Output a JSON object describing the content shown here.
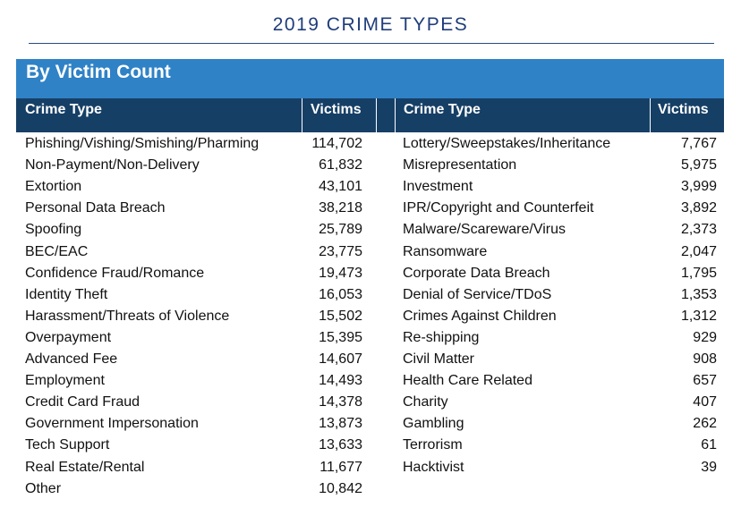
{
  "title": "2019 CRIME TYPES",
  "section_title": "By Victim Count",
  "header": {
    "left_crime_type": "Crime Type",
    "left_victims": "Victims",
    "right_crime_type": "Crime Type",
    "right_victims": "Victims"
  },
  "colors": {
    "title": "#1f3d7a",
    "band": "#2f82c6",
    "header": "#163f66"
  },
  "left_rows": [
    {
      "crime": "Phishing/Vishing/Smishing/Pharming",
      "victims": "114,702"
    },
    {
      "crime": "Non-Payment/Non-Delivery",
      "victims": "61,832"
    },
    {
      "crime": "Extortion",
      "victims": "43,101"
    },
    {
      "crime": "Personal Data Breach",
      "victims": "38,218"
    },
    {
      "crime": "Spoofing",
      "victims": "25,789"
    },
    {
      "crime": "BEC/EAC",
      "victims": "23,775"
    },
    {
      "crime": "Confidence Fraud/Romance",
      "victims": "19,473"
    },
    {
      "crime": "Identity Theft",
      "victims": "16,053"
    },
    {
      "crime": "Harassment/Threats of Violence",
      "victims": "15,502"
    },
    {
      "crime": "Overpayment",
      "victims": "15,395"
    },
    {
      "crime": "Advanced Fee",
      "victims": "14,607"
    },
    {
      "crime": "Employment",
      "victims": "14,493"
    },
    {
      "crime": "Credit Card Fraud",
      "victims": "14,378"
    },
    {
      "crime": "Government Impersonation",
      "victims": "13,873"
    },
    {
      "crime": "Tech Support",
      "victims": "13,633"
    },
    {
      "crime": "Real Estate/Rental",
      "victims": "11,677"
    },
    {
      "crime": "Other",
      "victims": "10,842"
    }
  ],
  "right_rows": [
    {
      "crime": "Lottery/Sweepstakes/Inheritance",
      "victims": "7,767"
    },
    {
      "crime": "Misrepresentation",
      "victims": "5,975"
    },
    {
      "crime": "Investment",
      "victims": "3,999"
    },
    {
      "crime": "IPR/Copyright and Counterfeit",
      "victims": "3,892"
    },
    {
      "crime": "Malware/Scareware/Virus",
      "victims": "2,373"
    },
    {
      "crime": "Ransomware",
      "victims": "2,047"
    },
    {
      "crime": "Corporate Data Breach",
      "victims": "1,795"
    },
    {
      "crime": "Denial of Service/TDoS",
      "victims": "1,353"
    },
    {
      "crime": "Crimes Against Children",
      "victims": "1,312"
    },
    {
      "crime": "Re-shipping",
      "victims": "929"
    },
    {
      "crime": "Civil Matter",
      "victims": "908"
    },
    {
      "crime": "Health Care Related",
      "victims": "657"
    },
    {
      "crime": "Charity",
      "victims": "407"
    },
    {
      "crime": "Gambling",
      "victims": "262"
    },
    {
      "crime": "Terrorism",
      "victims": "61"
    },
    {
      "crime": "Hacktivist",
      "victims": "39"
    }
  ]
}
